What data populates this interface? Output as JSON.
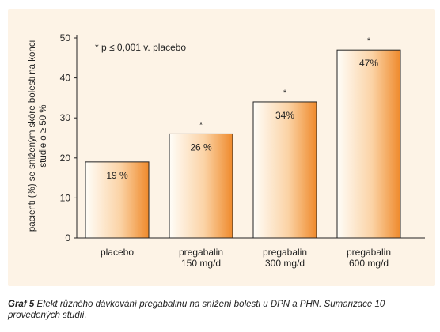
{
  "chart_data": {
    "type": "bar",
    "categories": [
      [
        "placebo"
      ],
      [
        "pregabalin",
        "150 mg/d"
      ],
      [
        "pregabalin",
        "300 mg/d"
      ],
      [
        "pregabalin",
        "600 mg/d"
      ]
    ],
    "values": [
      19,
      26,
      34,
      47
    ],
    "data_labels": [
      "19 %",
      "26 %",
      "34%",
      "47%"
    ],
    "significance_marks": [
      "",
      "*",
      "*",
      "*"
    ],
    "ylabel": "pacienti (%) se sníženým skóre bolesti na konci studie o ≥ 50 %",
    "ylim": [
      0,
      50
    ],
    "yticks": [
      0,
      10,
      20,
      30,
      40,
      50
    ],
    "annotation": "* p ≤ 0,001 v. placebo",
    "grid": false,
    "bar_colors": {
      "gradient_start": "#fffdf8",
      "gradient_mid": "#fbd3a6",
      "gradient_end": "#ef8a2c",
      "outline": "#222222"
    },
    "panel_background": "#fdf3e6"
  },
  "caption": {
    "label": "Graf 5",
    "text": "Efekt různého dávkování pregabalinu na snížení bolesti u DPN a PHN. Sumarizace 10 provedených studií."
  }
}
